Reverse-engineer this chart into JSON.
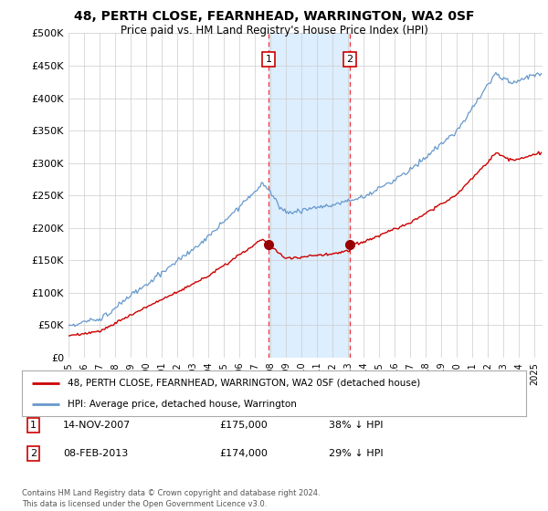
{
  "title": "48, PERTH CLOSE, FEARNHEAD, WARRINGTON, WA2 0SF",
  "subtitle": "Price paid vs. HM Land Registry's House Price Index (HPI)",
  "title_fontsize": 10,
  "subtitle_fontsize": 8.5,
  "ylim": [
    0,
    500000
  ],
  "yticks": [
    0,
    50000,
    100000,
    150000,
    200000,
    250000,
    300000,
    350000,
    400000,
    450000,
    500000
  ],
  "ytick_labels": [
    "£0",
    "£50K",
    "£100K",
    "£150K",
    "£200K",
    "£250K",
    "£300K",
    "£350K",
    "£400K",
    "£450K",
    "£500K"
  ],
  "xlim_start": 1995.0,
  "xlim_end": 2025.5,
  "purchase1_date": 2007.87,
  "purchase1_price": 175000,
  "purchase1_label": "14-NOV-2007",
  "purchase1_amount": "£175,000",
  "purchase1_hpi": "38% ↓ HPI",
  "purchase2_date": 2013.1,
  "purchase2_price": 174000,
  "purchase2_label": "08-FEB-2013",
  "purchase2_amount": "£174,000",
  "purchase2_hpi": "29% ↓ HPI",
  "shade_color": "#ddeeff",
  "vline_color": "#ee3333",
  "red_line_color": "#cc0000",
  "blue_line_color": "#6699cc",
  "legend_label_red": "48, PERTH CLOSE, FEARNHEAD, WARRINGTON, WA2 0SF (detached house)",
  "legend_label_blue": "HPI: Average price, detached house, Warrington",
  "footer": "Contains HM Land Registry data © Crown copyright and database right 2024.\nThis data is licensed under the Open Government Licence v3.0.",
  "background_color": "#ffffff",
  "grid_color": "#cccccc"
}
